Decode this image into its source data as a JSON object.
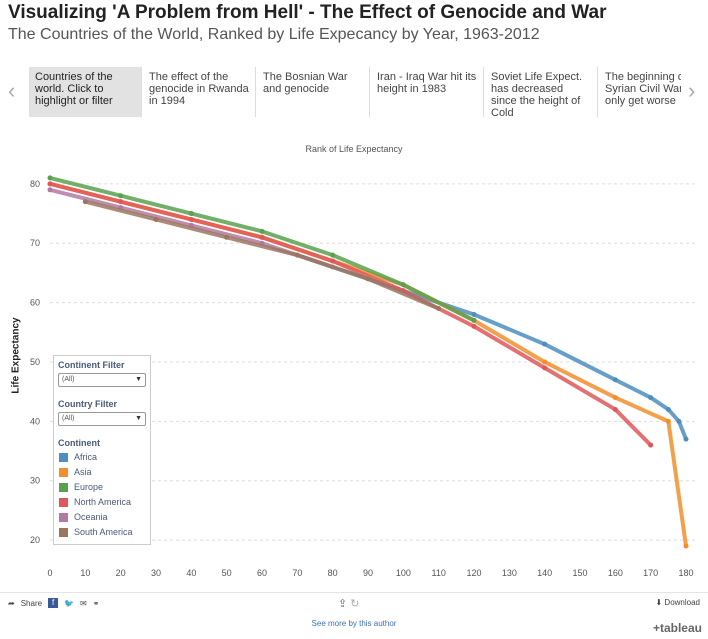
{
  "header": {
    "title": "Visualizing 'A Problem from Hell' - The Effect of Genocide and War",
    "subtitle": "The Countries of the World, Ranked by Life Expecancy by Year, 1963-2012"
  },
  "story": {
    "left_arrow": "‹",
    "right_arrow": "›",
    "points": [
      {
        "label": "Countries of the world. Click to highlight or filter"
      },
      {
        "label": "The effect of the genocide in Rwanda in 1994"
      },
      {
        "label": "The Bosnian War and genocide"
      },
      {
        "label": "Iran - Iraq War hit its height in 1983"
      },
      {
        "label": "Soviet Life Expect. has decreased since the height of Cold"
      },
      {
        "label": "The beginning of Syrian Civil War only get worse"
      }
    ]
  },
  "chart_data": {
    "type": "line",
    "title": "Rank of Life Expectancy",
    "xlabel": "",
    "ylabel": "Life Expectancy",
    "xlim": [
      0,
      180
    ],
    "ylim": [
      19,
      82
    ],
    "x_ticks": [
      0,
      10,
      20,
      30,
      40,
      50,
      60,
      70,
      80,
      90,
      100,
      110,
      120,
      130,
      140,
      150,
      160,
      170,
      180
    ],
    "y_ticks": [
      20,
      30,
      40,
      50,
      60,
      70,
      80
    ],
    "grid": true,
    "series": [
      {
        "name": "Africa",
        "color": "#4e8ec0",
        "x": [
          70,
          100,
          120,
          140,
          160,
          170,
          175,
          178,
          180
        ],
        "y": [
          68,
          62,
          58,
          53,
          47,
          44,
          42,
          40,
          37
        ]
      },
      {
        "name": "Asia",
        "color": "#f28e2b",
        "x": [
          0,
          20,
          40,
          60,
          80,
          100,
          120,
          140,
          160,
          175,
          180
        ],
        "y": [
          80,
          77,
          74,
          71,
          67,
          63,
          57,
          50,
          44,
          40,
          19
        ]
      },
      {
        "name": "Europe",
        "color": "#59a14f",
        "x": [
          0,
          20,
          40,
          60,
          80,
          100,
          120
        ],
        "y": [
          81,
          78,
          75,
          72,
          68,
          63,
          57
        ]
      },
      {
        "name": "North America",
        "color": "#e15759",
        "x": [
          0,
          20,
          40,
          60,
          80,
          100,
          120,
          140,
          160,
          170
        ],
        "y": [
          80,
          77,
          74,
          71,
          67,
          62,
          56,
          49,
          42,
          36
        ]
      },
      {
        "name": "Oceania",
        "color": "#b07aa1",
        "x": [
          0,
          20,
          40,
          60,
          80
        ],
        "y": [
          79,
          76,
          73,
          70,
          66
        ]
      },
      {
        "name": "South America",
        "color": "#9c755f",
        "x": [
          10,
          30,
          50,
          70,
          90,
          110
        ],
        "y": [
          77,
          74,
          71,
          68,
          64,
          59
        ]
      }
    ]
  },
  "filters": {
    "continent_label": "Continent Filter",
    "continent_value": "(All)",
    "country_label": "Country Filter",
    "country_value": "(All)",
    "legend_title": "Continent"
  },
  "footer": {
    "share": "Share",
    "download": "Download",
    "see_more": "See more by this author",
    "brand": "+tableau"
  }
}
